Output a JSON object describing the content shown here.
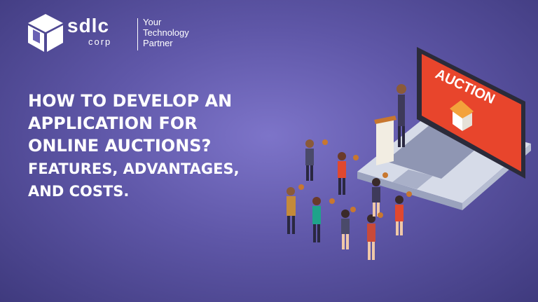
{
  "brand": {
    "word": "sdlc",
    "sub": "corp",
    "tagline": [
      "Your",
      "Technology",
      "Partner"
    ],
    "logo_icon": "cube-icon"
  },
  "headline": {
    "line1": "HOW TO DEVELOP AN",
    "line2": "APPLICATION FOR",
    "line3": "ONLINE AUCTIONS?",
    "line4": "FEATURES, ADVANTAGES,",
    "line5": "AND COSTS."
  },
  "illustration": {
    "screen_label": "AUCTION",
    "icons": [
      "laptop-icon",
      "house-icon",
      "auctioneer-icon",
      "bidder-icon",
      "gavel-icon"
    ]
  },
  "colors": {
    "background": "#5f57a8",
    "screen": "#e8452c",
    "laptop_body": "#c9cfe0",
    "text": "#ffffff"
  }
}
